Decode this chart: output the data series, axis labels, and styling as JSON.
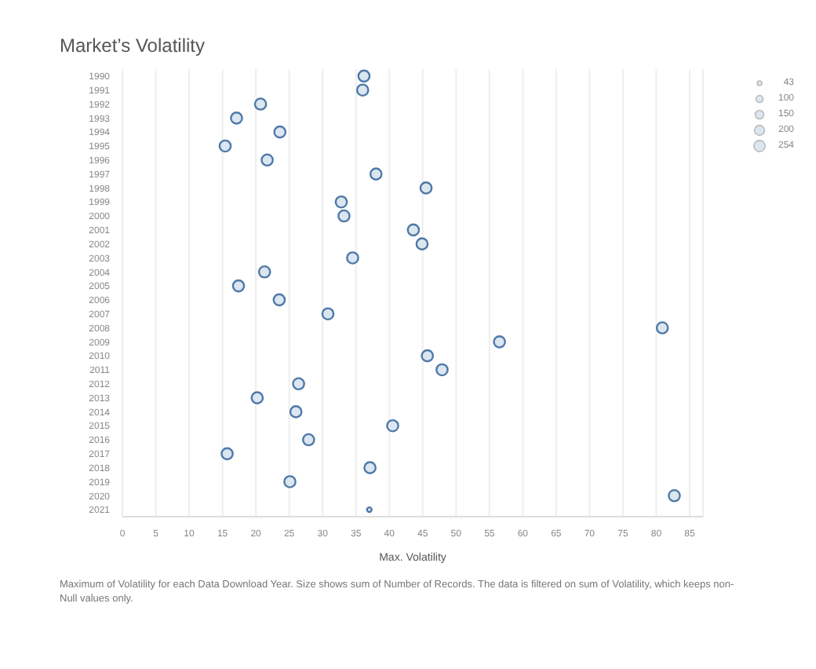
{
  "chart_data": {
    "type": "bubble",
    "title": "Market’s Volatility",
    "xlabel": "Max. Volatility",
    "orientation": "horizontal",
    "categories": [
      "1990",
      "1991",
      "1992",
      "1993",
      "1994",
      "1995",
      "1996",
      "1997",
      "1998",
      "1999",
      "2000",
      "2001",
      "2002",
      "2003",
      "2004",
      "2005",
      "2006",
      "2007",
      "2008",
      "2009",
      "2010",
      "2011",
      "2012",
      "2013",
      "2014",
      "2015",
      "2016",
      "2017",
      "2018",
      "2019",
      "2020",
      "2021"
    ],
    "values": [
      36.2,
      36.0,
      20.7,
      17.1,
      23.6,
      15.4,
      21.7,
      38.0,
      45.5,
      32.8,
      33.2,
      43.6,
      44.9,
      34.5,
      21.3,
      17.4,
      23.5,
      30.8,
      80.9,
      56.5,
      45.7,
      47.9,
      26.4,
      20.2,
      26.0,
      40.5,
      27.9,
      15.7,
      37.1,
      25.1,
      82.7,
      37.0
    ],
    "sizes": [
      254,
      254,
      254,
      254,
      254,
      254,
      254,
      254,
      254,
      254,
      254,
      254,
      254,
      254,
      254,
      254,
      254,
      254,
      254,
      254,
      254,
      254,
      254,
      254,
      254,
      254,
      254,
      254,
      254,
      254,
      254,
      43
    ],
    "size_legend": [
      43,
      100,
      150,
      200,
      254
    ],
    "color": "#4e79a7",
    "marker": "circle",
    "xlim": [
      0,
      87
    ],
    "xticks": [
      0,
      5,
      10,
      15,
      20,
      25,
      30,
      35,
      40,
      45,
      50,
      55,
      60,
      65,
      70,
      75,
      80,
      85
    ],
    "grid": "x",
    "annotations": [
      "Maximum of Volatility for each Data Download Year.  Size shows sum of Number of Records. The data is filtered on sum of Volatility, which keeps non-Null values only."
    ]
  }
}
